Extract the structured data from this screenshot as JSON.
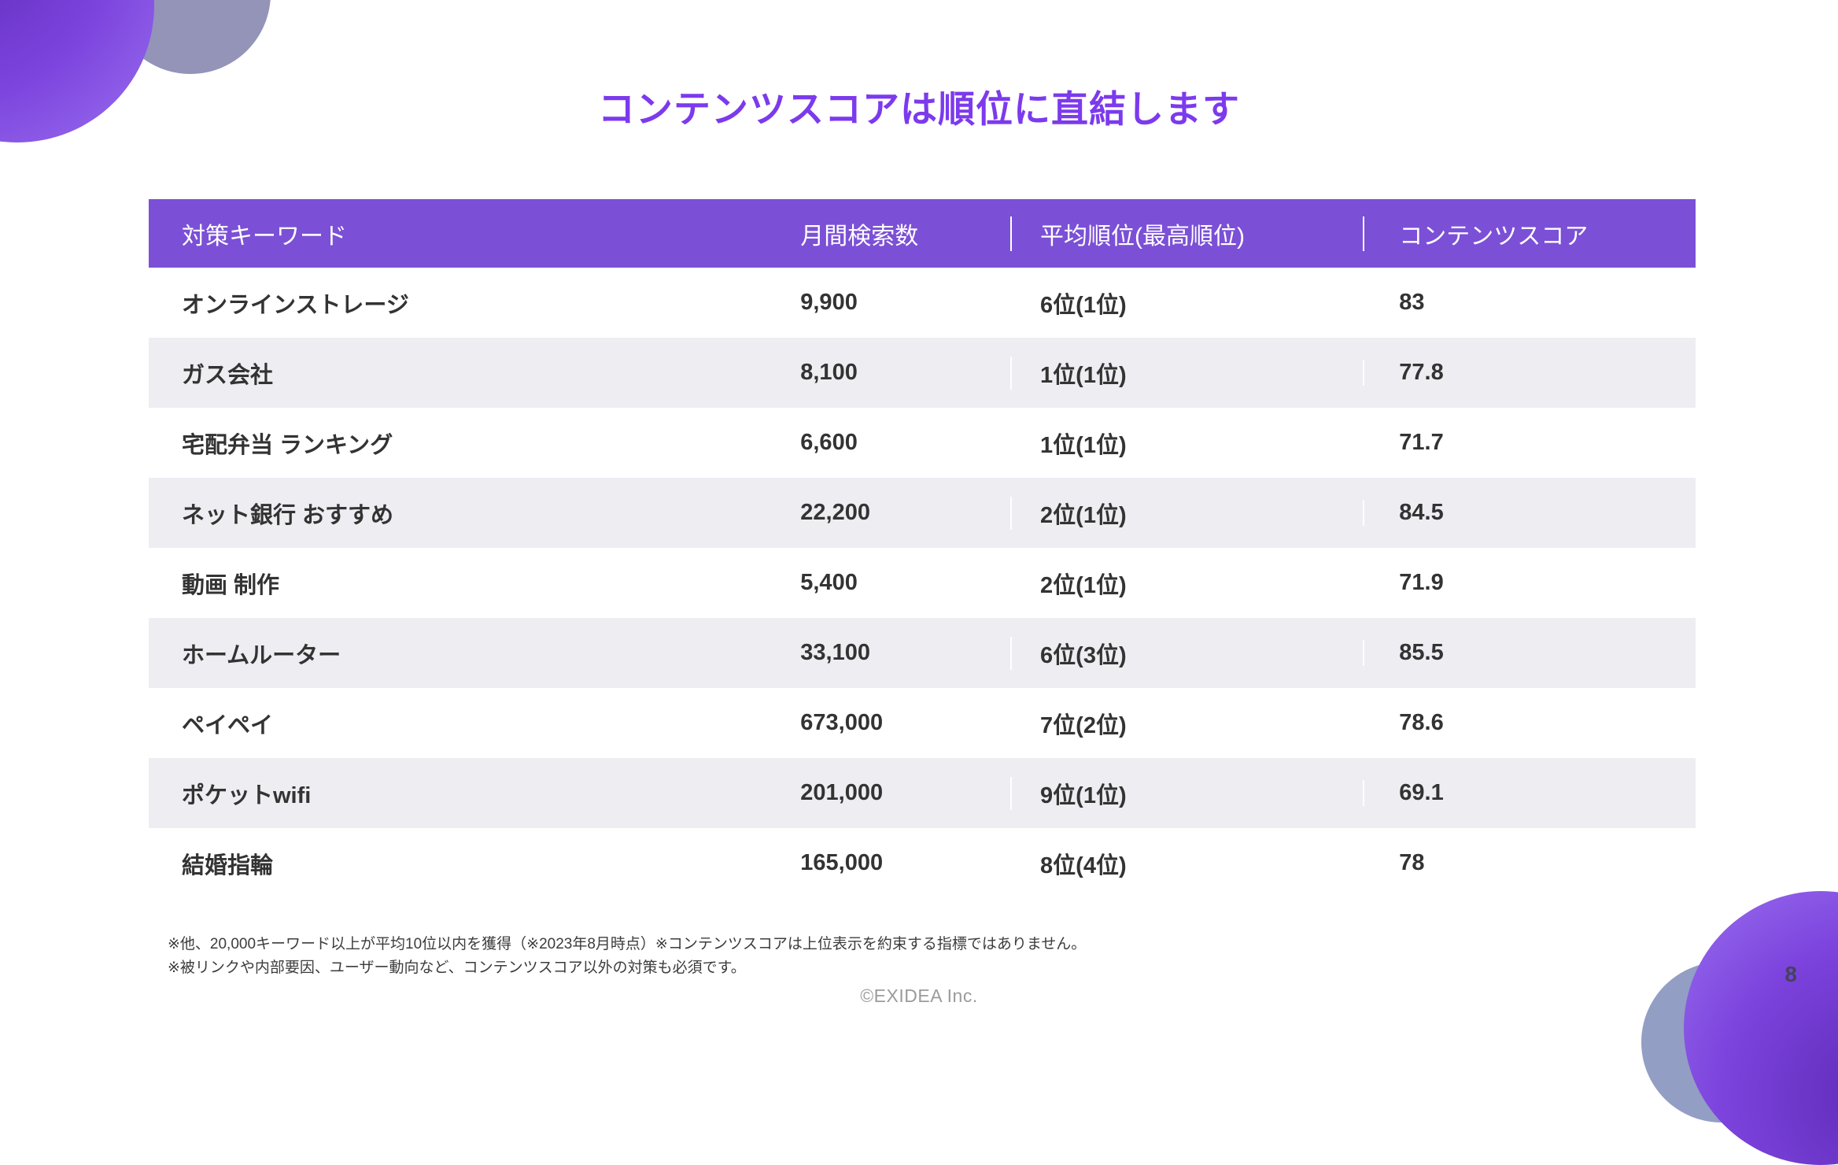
{
  "slide": {
    "title": "コンテンツスコアは順位に直結します",
    "page_number": "8",
    "footer": "©EXIDEA Inc.",
    "footnote_line1": "※他、20,000キーワード以上が平均10位以内を獲得（※2023年8月時点）※コンテンツスコアは上位表示を約束する指標ではありません。",
    "footnote_line2": "※被リンクや内部要因、ユーザー動向など、コンテンツスコア以外の対策も必須です。"
  },
  "colors": {
    "accent_purple": "#7b50d6",
    "title_purple": "#7c3aed",
    "row_alt_gray": "#eeedf2"
  },
  "table": {
    "headers": [
      "対策キーワード",
      "月間検索数",
      "平均順位(最高順位)",
      "コンテンツスコア"
    ],
    "rows": [
      {
        "keyword": "オンラインストレージ",
        "volume": "9,900",
        "rank": "6位(1位)",
        "score": "83"
      },
      {
        "keyword": "ガス会社",
        "volume": "8,100",
        "rank": "1位(1位)",
        "score": "77.8"
      },
      {
        "keyword": "宅配弁当 ランキング",
        "volume": "6,600",
        "rank": "1位(1位)",
        "score": "71.7"
      },
      {
        "keyword": "ネット銀行 おすすめ",
        "volume": "22,200",
        "rank": "2位(1位)",
        "score": "84.5"
      },
      {
        "keyword": "動画 制作",
        "volume": "5,400",
        "rank": "2位(1位)",
        "score": "71.9"
      },
      {
        "keyword": "ホームルーター",
        "volume": "33,100",
        "rank": "6位(3位)",
        "score": "85.5"
      },
      {
        "keyword": "ペイペイ",
        "volume": "673,000",
        "rank": "7位(2位)",
        "score": "78.6"
      },
      {
        "keyword": "ポケットwifi",
        "volume": "201,000",
        "rank": "9位(1位)",
        "score": "69.1"
      },
      {
        "keyword": "結婚指輪",
        "volume": "165,000",
        "rank": "8位(4位)",
        "score": "78"
      }
    ]
  }
}
